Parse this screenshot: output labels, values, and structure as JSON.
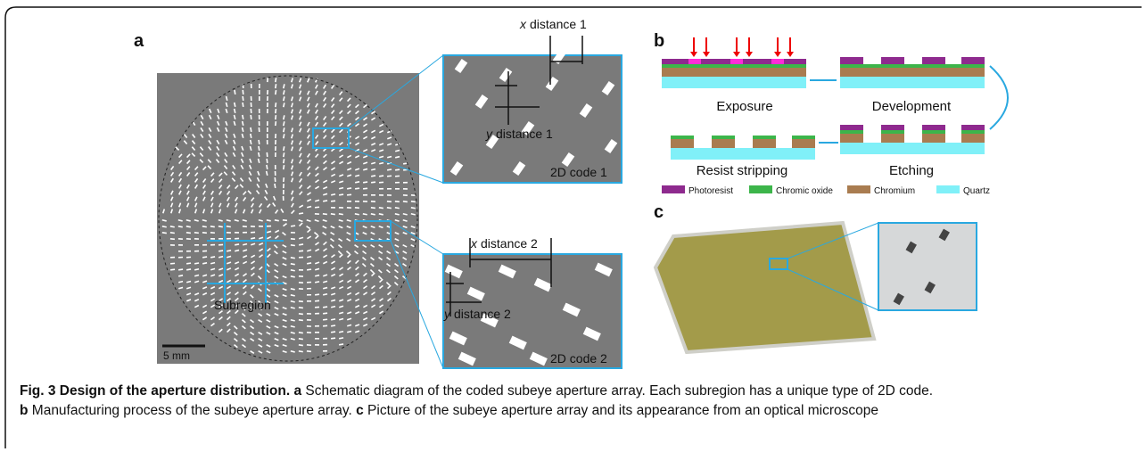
{
  "panel_a": {
    "label": "a",
    "x_distance_1": {
      "var": "x",
      "text": "distance 1"
    },
    "y_distance_1": {
      "var": "y",
      "text": "distance 1"
    },
    "code_1": "2D code 1",
    "x_distance_2": {
      "var": "x",
      "text": "distance 2"
    },
    "y_distance_2": {
      "var": "y",
      "text": "distance 2"
    },
    "code_2": "2D code 2",
    "subregion": "Subregion",
    "scale": "5 mm"
  },
  "panel_b": {
    "label": "b",
    "steps": [
      "Exposure",
      "Development",
      "Resist stripping",
      "Etching"
    ],
    "legend": [
      "Photoresist",
      "Chromic oxide",
      "Chromium",
      "Quartz"
    ]
  },
  "panel_c": {
    "label": "c"
  },
  "caption": {
    "title": "Fig. 3 Design of the aperture distribution.",
    "parts": [
      {
        "label": "a",
        "text": "Schematic diagram of the coded subeye aperture array. Each subregion has a unique type of 2D code."
      },
      {
        "label": "b",
        "text": "Manufacturing process of the subeye aperture array."
      },
      {
        "label": "c",
        "text": "Picture of the subeye aperture array and its appearance from an optical microscope"
      }
    ]
  }
}
